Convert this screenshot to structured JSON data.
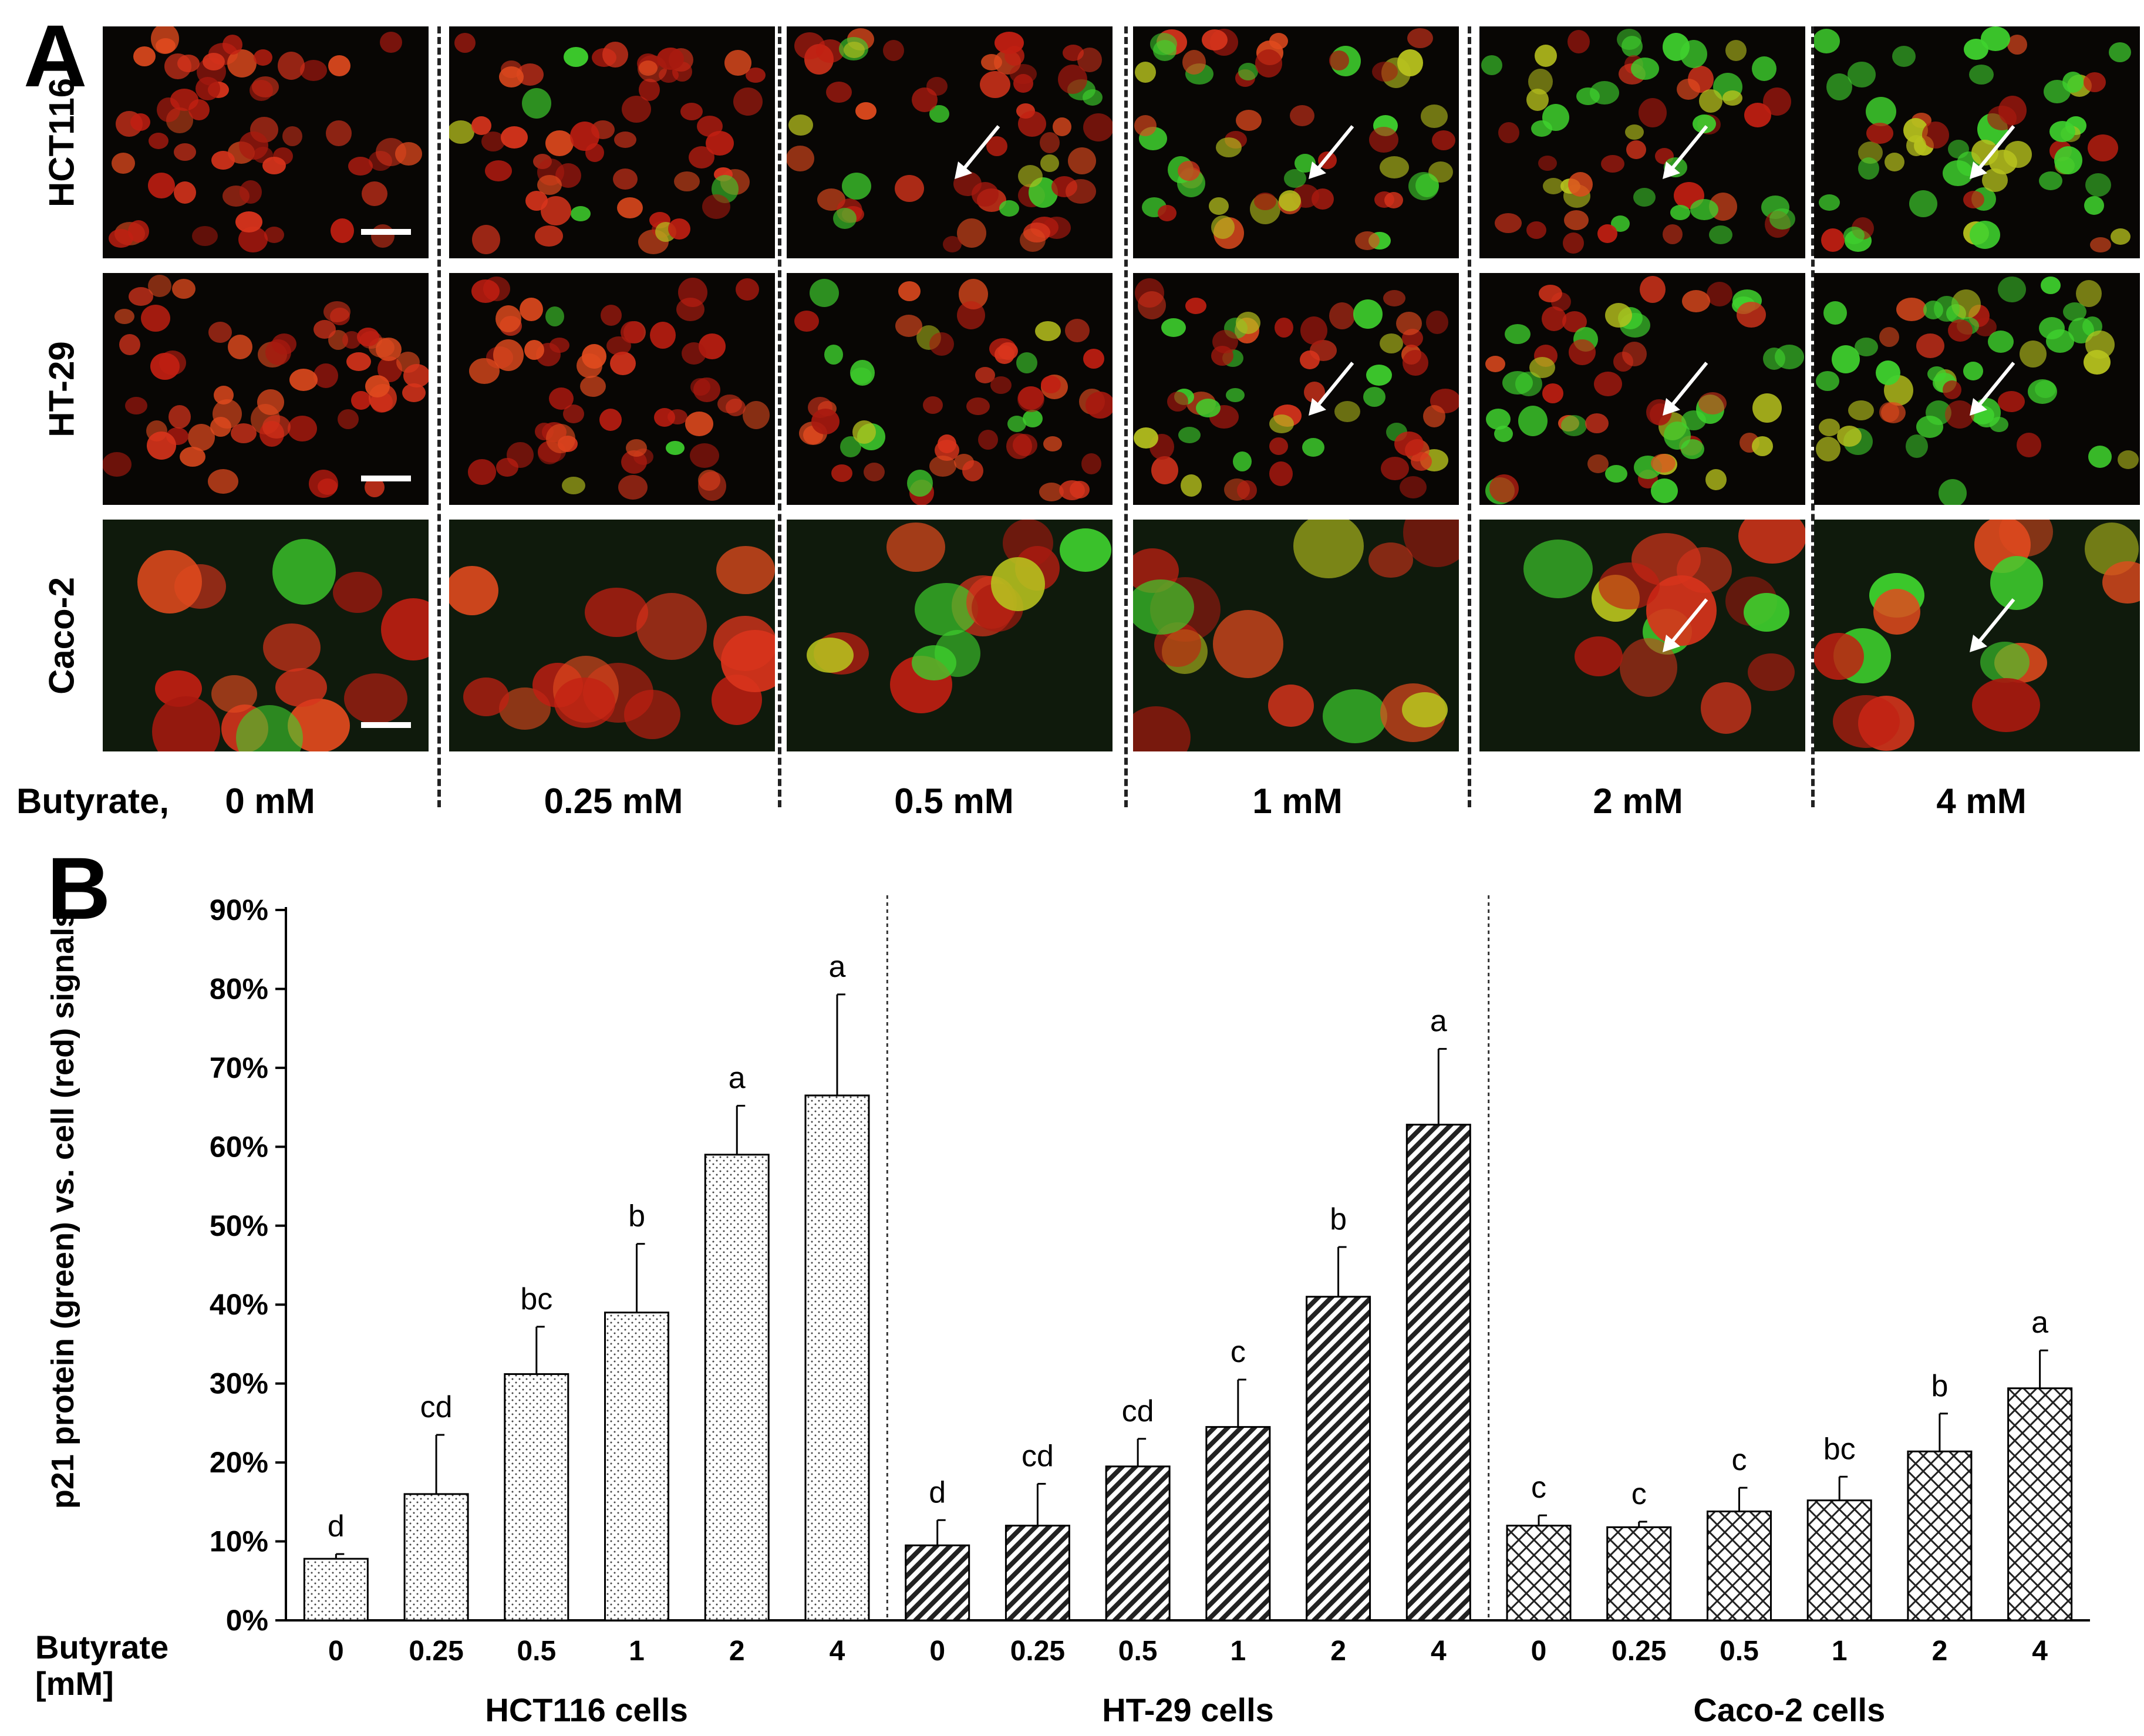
{
  "panel_a": {
    "letter": "A",
    "row_labels": [
      "HCT116",
      "HT-29",
      "Caco-2"
    ],
    "row_prefix": "Butyrate,",
    "concentrations": [
      "0 mM",
      "0.25 mM",
      "0.5 mM",
      "1 mM",
      "2 mM",
      "4 mM"
    ],
    "green_fraction": [
      [
        0.0,
        0.03,
        0.18,
        0.45,
        0.7,
        0.8
      ],
      [
        0.0,
        0.03,
        0.2,
        0.35,
        0.5,
        0.75
      ],
      [
        0.15,
        0.2,
        0.25,
        0.25,
        0.4,
        0.45
      ]
    ]
  },
  "chart_data": {
    "type": "bar",
    "panel_letter": "B",
    "ylabel": "p21 protein (green) vs. cell (red) signals",
    "xlabel": "Butyrate [mM]",
    "ylim": [
      0,
      90
    ],
    "y_ticks": [
      "0%",
      "10%",
      "20%",
      "30%",
      "40%",
      "50%",
      "60%",
      "70%",
      "80%",
      "90%"
    ],
    "categories": [
      "0",
      "0.25",
      "0.5",
      "1",
      "2",
      "4"
    ],
    "series": [
      {
        "name": "HCT116 cells",
        "values": [
          7.8,
          16.0,
          31.2,
          39.0,
          59.0,
          66.5
        ],
        "errors": [
          0.6,
          7.5,
          6.0,
          8.7,
          6.2,
          12.8
        ],
        "letters": [
          "d",
          "cd",
          "bc",
          "b",
          "a",
          "a"
        ],
        "pattern": "dots"
      },
      {
        "name": "HT-29 cells",
        "values": [
          9.5,
          12.0,
          19.5,
          24.5,
          41.0,
          62.8
        ],
        "errors": [
          3.2,
          5.3,
          3.5,
          6.0,
          6.3,
          9.6
        ],
        "letters": [
          "d",
          "cd",
          "cd",
          "c",
          "b",
          "a"
        ],
        "pattern": "diagonal"
      },
      {
        "name": "Caco-2 cells",
        "values": [
          12.0,
          11.8,
          13.8,
          15.2,
          21.4,
          29.4
        ],
        "errors": [
          1.3,
          0.7,
          3.0,
          3.0,
          4.8,
          4.8
        ],
        "letters": [
          "c",
          "c",
          "c",
          "bc",
          "b",
          "a"
        ],
        "pattern": "crosshatch"
      }
    ],
    "grid": false,
    "legend": "none"
  }
}
